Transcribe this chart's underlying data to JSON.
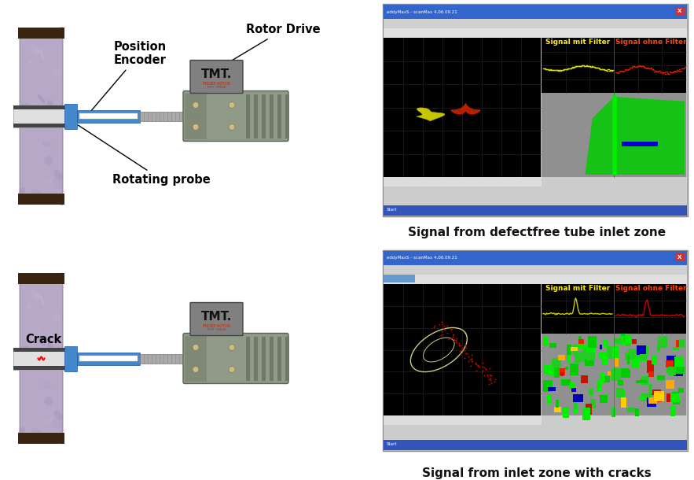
{
  "bg_color": "#ffffff",
  "top_caption": "Signal from defectfree tube inlet zone",
  "bottom_caption": "Signal from inlet zone with cracks",
  "label_position_encoder": "Position\nEncoder",
  "label_rotor_drive": "Rotor Drive",
  "label_rotating_probe": "Rotating probe",
  "label_crack": "Crack",
  "wall_color": "#b8a8c8",
  "wall_dark": "#7a6888",
  "frame_color": "#3a2510",
  "tube_color": "#e8e8e8",
  "blue_arm": "#4488cc",
  "blue_arm_dark": "#2255aa",
  "shaft_gray": "#aaaaaa",
  "body_green": "#8aaa88",
  "body_gray": "#909090",
  "tmt_gray": "#888888",
  "caption_fontsize": 11,
  "label_fontsize": 10.5
}
